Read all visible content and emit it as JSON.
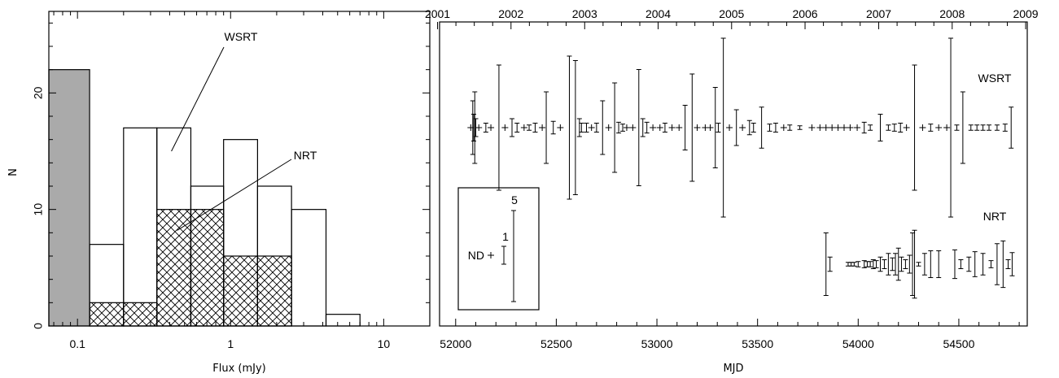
{
  "chart_data": [
    {
      "type": "bar",
      "panel": "histogram",
      "xlabel": "Flux (mJy)",
      "ylabel": "N",
      "xscale": "log",
      "xlim": [
        0.065,
        20
      ],
      "ylim": [
        0,
        27
      ],
      "x_ticks": [
        "0.1",
        "1",
        "10"
      ],
      "y_ticks": [
        "0",
        "10",
        "20"
      ],
      "bin_edges": [
        0.065,
        0.12,
        0.2,
        0.33,
        0.55,
        0.9,
        1.5,
        2.5,
        4.2,
        7,
        12
      ],
      "colors": {
        "nondetection": "#aaaaaa",
        "outline": "#000000"
      },
      "series": [
        {
          "role": "wsrt-open",
          "values": [
            22,
            7,
            17,
            17,
            12,
            16,
            12,
            10,
            1
          ]
        },
        {
          "role": "nrt-hatched",
          "values": [
            0,
            2,
            2,
            10,
            10,
            6,
            6,
            0,
            0
          ]
        },
        {
          "role": "nondetection-shaded",
          "values": [
            22,
            0,
            0,
            0,
            0,
            0,
            0,
            0,
            0
          ]
        }
      ],
      "annotations": [
        {
          "text": "WSRT",
          "points_at_bin": 3,
          "points_at_y": 15
        },
        {
          "text": "NRT",
          "points_at_bin": 3,
          "points_at_y": 8.2
        }
      ]
    },
    {
      "type": "scatter",
      "panel": "timeseries",
      "xlabel": "MJD",
      "xlim": [
        51920,
        54840
      ],
      "x_ticks": [
        "52000",
        "52500",
        "53000",
        "53500",
        "54000",
        "54500"
      ],
      "top_axis_years": [
        "2001",
        "2002",
        "2003",
        "2004",
        "2005",
        "2006",
        "2007",
        "2008",
        "2009"
      ],
      "series_labels": [
        "WSRT",
        "NRT"
      ],
      "scale_key": {
        "labels": [
          "ND",
          "1",
          "5"
        ]
      },
      "series": [
        {
          "role": "wsrt",
          "baseline": "upper",
          "points": [
            {
              "mjd": 52075,
              "f": 0
            },
            {
              "mjd": 52085,
              "f": 3
            },
            {
              "mjd": 52090,
              "f": 1.5
            },
            {
              "mjd": 52095,
              "f": 4
            },
            {
              "mjd": 52100,
              "f": 1
            },
            {
              "mjd": 52115,
              "f": 0
            },
            {
              "mjd": 52150,
              "f": 0.5
            },
            {
              "mjd": 52175,
              "f": 0
            },
            {
              "mjd": 52215,
              "f": 7
            },
            {
              "mjd": 52245,
              "f": 0
            },
            {
              "mjd": 52280,
              "f": 1
            },
            {
              "mjd": 52305,
              "f": 0.5
            },
            {
              "mjd": 52340,
              "f": 0
            },
            {
              "mjd": 52365,
              "f": 0.3
            },
            {
              "mjd": 52395,
              "f": 0.5
            },
            {
              "mjd": 52430,
              "f": 0
            },
            {
              "mjd": 52450,
              "f": 4
            },
            {
              "mjd": 52485,
              "f": 0.7
            },
            {
              "mjd": 52520,
              "f": 0
            },
            {
              "mjd": 52565,
              "f": 8
            },
            {
              "mjd": 52595,
              "f": 7.5
            },
            {
              "mjd": 52615,
              "f": 1
            },
            {
              "mjd": 52625,
              "f": 0.5
            },
            {
              "mjd": 52650,
              "f": 0.5
            },
            {
              "mjd": 52675,
              "f": 0
            },
            {
              "mjd": 52700,
              "f": 0.5
            },
            {
              "mjd": 52730,
              "f": 3
            },
            {
              "mjd": 52760,
              "f": 0
            },
            {
              "mjd": 52790,
              "f": 5
            },
            {
              "mjd": 52810,
              "f": 0.6
            },
            {
              "mjd": 52830,
              "f": 0.4
            },
            {
              "mjd": 52850,
              "f": 0
            },
            {
              "mjd": 52880,
              "f": 0
            },
            {
              "mjd": 52910,
              "f": 6.5
            },
            {
              "mjd": 52930,
              "f": 1
            },
            {
              "mjd": 52950,
              "f": 0.6
            },
            {
              "mjd": 52980,
              "f": 0
            },
            {
              "mjd": 53015,
              "f": 0
            },
            {
              "mjd": 53040,
              "f": 0.5
            },
            {
              "mjd": 53075,
              "f": 0
            },
            {
              "mjd": 53110,
              "f": 0
            },
            {
              "mjd": 53140,
              "f": 2.5
            },
            {
              "mjd": 53175,
              "f": 6
            },
            {
              "mjd": 53200,
              "f": 0
            },
            {
              "mjd": 53240,
              "f": 0
            },
            {
              "mjd": 53265,
              "f": 0
            },
            {
              "mjd": 53290,
              "f": 4.5
            },
            {
              "mjd": 53305,
              "f": 0.5
            },
            {
              "mjd": 53330,
              "f": 10
            },
            {
              "mjd": 53360,
              "f": 0
            },
            {
              "mjd": 53395,
              "f": 2
            },
            {
              "mjd": 53425,
              "f": 0
            },
            {
              "mjd": 53460,
              "f": 0.8
            },
            {
              "mjd": 53480,
              "f": 0.5
            },
            {
              "mjd": 53520,
              "f": 2.3
            },
            {
              "mjd": 53560,
              "f": 0.4
            },
            {
              "mjd": 53590,
              "f": 0.5
            },
            {
              "mjd": 53630,
              "f": 0
            },
            {
              "mjd": 53660,
              "f": 0.3
            },
            {
              "mjd": 53710,
              "f": 0.2
            },
            {
              "mjd": 53770,
              "f": 0
            },
            {
              "mjd": 53810,
              "f": 0
            },
            {
              "mjd": 53840,
              "f": 0
            },
            {
              "mjd": 53870,
              "f": 0
            },
            {
              "mjd": 53900,
              "f": 0
            },
            {
              "mjd": 53930,
              "f": 0
            },
            {
              "mjd": 53960,
              "f": 0
            },
            {
              "mjd": 53995,
              "f": 0
            },
            {
              "mjd": 54030,
              "f": 0.6
            },
            {
              "mjd": 54060,
              "f": 0.3
            },
            {
              "mjd": 54110,
              "f": 1.5
            },
            {
              "mjd": 54150,
              "f": 0.3
            },
            {
              "mjd": 54180,
              "f": 0.4
            },
            {
              "mjd": 54210,
              "f": 0.5
            },
            {
              "mjd": 54240,
              "f": 0
            },
            {
              "mjd": 54280,
              "f": 7
            },
            {
              "mjd": 54320,
              "f": 0
            },
            {
              "mjd": 54360,
              "f": 0.4
            },
            {
              "mjd": 54400,
              "f": 0
            },
            {
              "mjd": 54440,
              "f": 0
            },
            {
              "mjd": 54460,
              "f": 10
            },
            {
              "mjd": 54490,
              "f": 0.3
            },
            {
              "mjd": 54520,
              "f": 4
            },
            {
              "mjd": 54560,
              "f": 0.3
            },
            {
              "mjd": 54590,
              "f": 0.3
            },
            {
              "mjd": 54620,
              "f": 0.3
            },
            {
              "mjd": 54650,
              "f": 0.3
            },
            {
              "mjd": 54690,
              "f": 0.3
            },
            {
              "mjd": 54730,
              "f": 0.4
            },
            {
              "mjd": 54760,
              "f": 2.3
            }
          ]
        },
        {
          "role": "nrt",
          "baseline": "lower",
          "points": [
            {
              "mjd": 53840,
              "f": 3.5
            },
            {
              "mjd": 53860,
              "f": 0.8
            },
            {
              "mjd": 53950,
              "f": 0.2
            },
            {
              "mjd": 53965,
              "f": 0.2
            },
            {
              "mjd": 53980,
              "f": 0.2
            },
            {
              "mjd": 54000,
              "f": 0.3
            },
            {
              "mjd": 54030,
              "f": 0.4
            },
            {
              "mjd": 54045,
              "f": 0.3
            },
            {
              "mjd": 54060,
              "f": 0.3
            },
            {
              "mjd": 54075,
              "f": 0.5
            },
            {
              "mjd": 54090,
              "f": 0.4
            },
            {
              "mjd": 54110,
              "f": 0.8
            },
            {
              "mjd": 54130,
              "f": 0.5
            },
            {
              "mjd": 54150,
              "f": 1.2
            },
            {
              "mjd": 54170,
              "f": 0.7
            },
            {
              "mjd": 54185,
              "f": 1.2
            },
            {
              "mjd": 54200,
              "f": 1.8
            },
            {
              "mjd": 54215,
              "f": 0.8
            },
            {
              "mjd": 54235,
              "f": 0.5
            },
            {
              "mjd": 54255,
              "f": 1
            },
            {
              "mjd": 54270,
              "f": 3.5
            },
            {
              "mjd": 54280,
              "f": 3.8
            },
            {
              "mjd": 54300,
              "f": 0.2
            },
            {
              "mjd": 54330,
              "f": 1.2
            },
            {
              "mjd": 54360,
              "f": 1.5
            },
            {
              "mjd": 54400,
              "f": 1.5
            },
            {
              "mjd": 54480,
              "f": 1.6
            },
            {
              "mjd": 54510,
              "f": 0.5
            },
            {
              "mjd": 54550,
              "f": 0.8
            },
            {
              "mjd": 54580,
              "f": 1.4
            },
            {
              "mjd": 54620,
              "f": 1.2
            },
            {
              "mjd": 54660,
              "f": 0.4
            },
            {
              "mjd": 54690,
              "f": 2.3
            },
            {
              "mjd": 54720,
              "f": 2.6
            },
            {
              "mjd": 54745,
              "f": 0.5
            },
            {
              "mjd": 54765,
              "f": 1.3
            }
          ]
        }
      ]
    }
  ]
}
